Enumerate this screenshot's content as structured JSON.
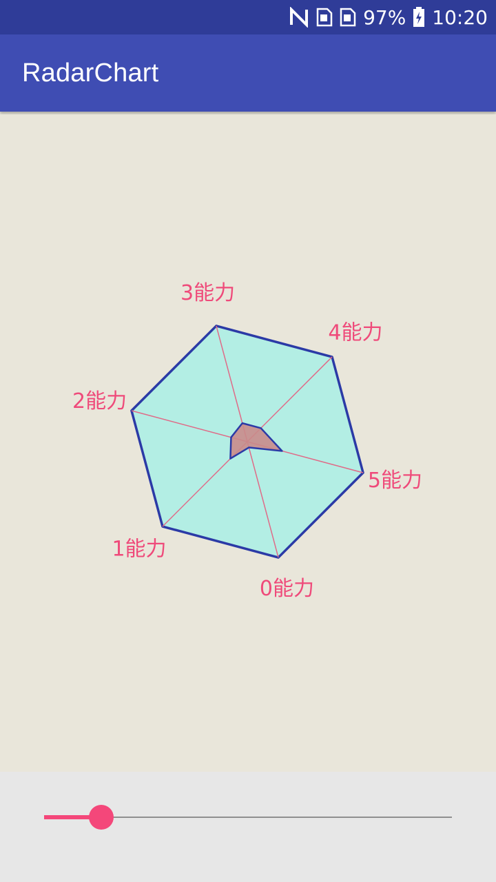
{
  "status_bar": {
    "battery_percent": "97%",
    "time": "10:20",
    "icons": [
      "nfc-icon",
      "sim-card-icon",
      "sim-card-icon",
      "battery-charging-icon"
    ]
  },
  "app_bar": {
    "title": "RadarChart"
  },
  "chart_data": {
    "type": "radar",
    "axes": [
      "0能力",
      "1能力",
      "2能力",
      "3能力",
      "4能力",
      "5能力"
    ],
    "series": [
      {
        "values": [
          0.05,
          0.2,
          0.14,
          0.16,
          0.16,
          0.3
        ],
        "fill": "#c98b8b",
        "stroke": "#2b3aa6"
      }
    ],
    "max": 1,
    "web_fill": "#b3eee4",
    "web_stroke": "#2b3aa6",
    "spoke_color": "#e06a87",
    "label_color": "#ef4a7a"
  },
  "slider": {
    "value": 0.14,
    "accent": "#f4477a"
  }
}
